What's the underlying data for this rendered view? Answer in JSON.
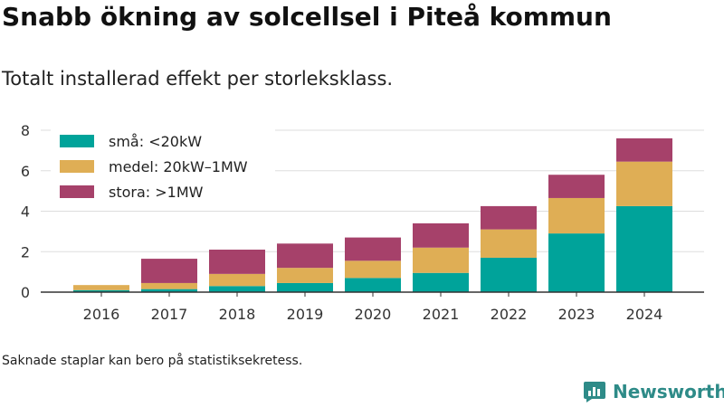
{
  "header": {
    "title": "Snabb ökning av solcellsel i Piteå kommun",
    "subtitle": "Totalt installerad effekt per storleksklass."
  },
  "footer": {
    "note": "Saknade staplar kan bero på statistiksekretess.",
    "brand": "Newsworthy",
    "brand_icon": "bar-chart-speech-bubble-icon",
    "brand_color": "#2e8b88"
  },
  "chart_data": {
    "type": "bar",
    "stacked": true,
    "categories": [
      "2016",
      "2017",
      "2018",
      "2019",
      "2020",
      "2021",
      "2022",
      "2023",
      "2024"
    ],
    "series": [
      {
        "name": "små: <20kW",
        "color": "#00a39a",
        "values": [
          0.1,
          0.15,
          0.3,
          0.45,
          0.7,
          0.95,
          1.7,
          2.9,
          4.25
        ]
      },
      {
        "name": "medel: 20kW–1MW",
        "color": "#dfae55",
        "values": [
          0.25,
          0.3,
          0.6,
          0.75,
          0.85,
          1.25,
          1.4,
          1.75,
          2.2
        ]
      },
      {
        "name": "stora: >1MW",
        "color": "#a6416a",
        "values": [
          0.0,
          1.2,
          1.2,
          1.2,
          1.15,
          1.2,
          1.15,
          1.15,
          1.15
        ]
      }
    ],
    "yticks": [
      0,
      2,
      4,
      6,
      8
    ],
    "ylim": [
      0,
      8
    ],
    "grid": true,
    "legend_position": "top-left"
  }
}
